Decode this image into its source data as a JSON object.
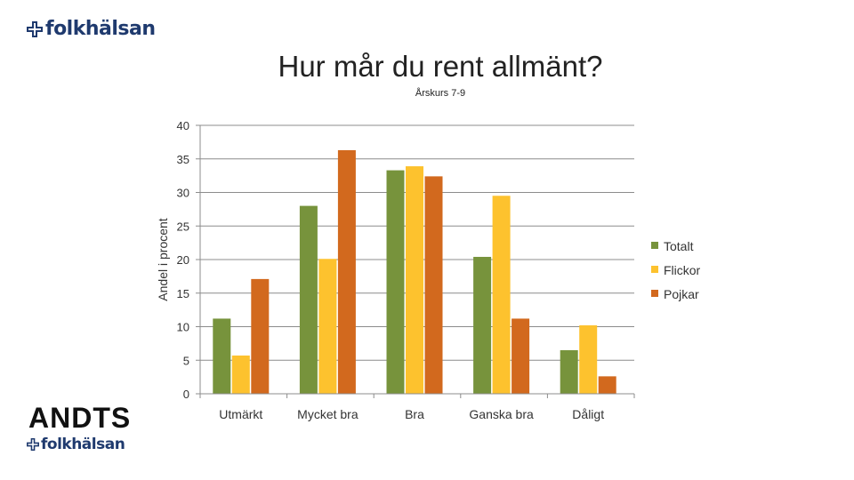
{
  "brand": {
    "name": "folkhälsan",
    "secondary": "ANDTS"
  },
  "icons": {
    "brand_mark": "plus-cross-icon"
  },
  "colors": {
    "brand": "#1f3a6e",
    "totalt": "#77933c",
    "flickor": "#fdc22e",
    "pojkar": "#d2691e"
  },
  "chart_data": {
    "type": "bar",
    "title": "Hur mår du rent allmänt?",
    "subtitle": "Årskurs 7-9",
    "xlabel": "",
    "ylabel": "Andel i procent",
    "ylim": [
      0,
      40
    ],
    "yticks": [
      "0",
      "5",
      "10",
      "15",
      "20",
      "25",
      "30",
      "35",
      "40"
    ],
    "grid": true,
    "legend_position": "right",
    "categories": [
      "Utmärkt",
      "Mycket bra",
      "Bra",
      "Ganska bra",
      "Dåligt"
    ],
    "series": [
      {
        "name": "Totalt",
        "values": [
          11.2,
          28.0,
          33.3,
          20.4,
          6.5
        ]
      },
      {
        "name": "Flickor",
        "values": [
          5.7,
          20.1,
          33.9,
          29.5,
          10.2
        ]
      },
      {
        "name": "Pojkar",
        "values": [
          17.1,
          36.3,
          32.4,
          11.2,
          2.6
        ]
      }
    ]
  }
}
